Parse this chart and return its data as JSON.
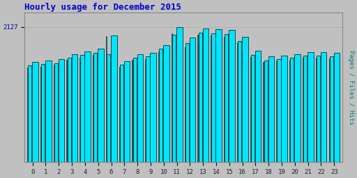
{
  "title": "Hourly usage for December 2015",
  "title_color": "#0000cc",
  "title_fontsize": 9,
  "ylabel_right": "Pages / Files / Hits",
  "ylabel_right_color": "#008080",
  "ytick_label": "2127",
  "ytick_color": "#0000aa",
  "background_color": "#c0c0c0",
  "plot_bg_color": "#c0c0c0",
  "bar_color_cyan": "#00e5ff",
  "bar_color_teal": "#006060",
  "bar_edge_color": "#003333",
  "hours": [
    0,
    1,
    2,
    3,
    4,
    5,
    6,
    7,
    8,
    9,
    10,
    11,
    12,
    13,
    14,
    15,
    16,
    17,
    18,
    19,
    20,
    21,
    22,
    23
  ],
  "hits": [
    1580,
    1600,
    1620,
    1700,
    1740,
    1780,
    1990,
    1590,
    1700,
    1720,
    1840,
    2127,
    1960,
    2100,
    2090,
    2075,
    1970,
    1750,
    1660,
    1680,
    1700,
    1730,
    1730,
    1720
  ],
  "files": [
    1520,
    1545,
    1560,
    1645,
    1685,
    1720,
    1700,
    1535,
    1645,
    1660,
    1780,
    2000,
    1870,
    2035,
    2025,
    2010,
    1910,
    1690,
    1600,
    1625,
    1645,
    1670,
    1670,
    1660
  ],
  "pages": [
    1490,
    1505,
    1530,
    1610,
    1645,
    1690,
    1980,
    1505,
    1610,
    1625,
    1740,
    2020,
    1810,
    2000,
    1995,
    1975,
    1880,
    1650,
    1575,
    1600,
    1615,
    1645,
    1640,
    1630
  ],
  "ylim": [
    0,
    2350
  ],
  "xlim": [
    -0.6,
    23.6
  ]
}
